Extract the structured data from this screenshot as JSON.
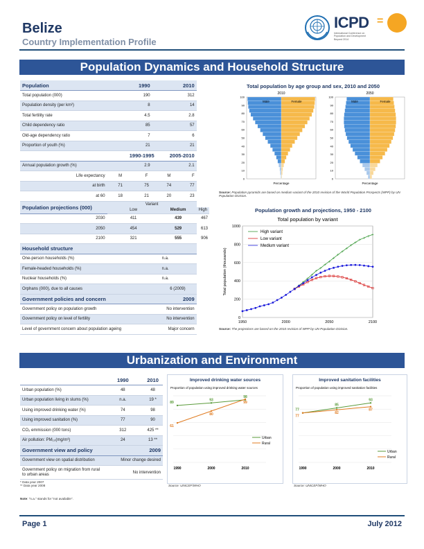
{
  "header": {
    "country": "Belize",
    "subtitle": "Country Implementation Profile",
    "logo_text": "ICPD",
    "logo_eq": "=",
    "logo_sub": "International Conference on Population and Development Beyond 2014"
  },
  "section1_title": "Population Dynamics and Household Structure",
  "section2_title": "Urbanization and Environment",
  "pop_table": {
    "header": {
      "label": "Population",
      "y1": "1990",
      "y2": "2010"
    },
    "rows": [
      {
        "label": "Total population (000)",
        "v1": "190",
        "v2": "312"
      },
      {
        "label": "Population density (per km²)",
        "v1": "8",
        "v2": "14"
      },
      {
        "label": "Total fertility rate",
        "v1": "4.5",
        "v2": "2.8"
      },
      {
        "label": "Child dependency ratio",
        "v1": "85",
        "v2": "57"
      },
      {
        "label": "Old-age dependency ratio",
        "v1": "7",
        "v2": "6"
      },
      {
        "label": "Proportion of youth (%)",
        "v1": "21",
        "v2": "21"
      }
    ],
    "period_header": {
      "p1": "1990-1995",
      "p2": "2005-2010"
    },
    "growth": {
      "label": "Annual population growth (%)",
      "v1": "2.9",
      "v2": "2.1"
    },
    "life_exp": {
      "label": "Life expectancy",
      "m": "M",
      "f": "F",
      "rows": [
        {
          "label": "at birth",
          "m1": "71",
          "f1": "75",
          "m2": "74",
          "f2": "77"
        },
        {
          "label": "at 60",
          "m1": "18",
          "f1": "21",
          "m2": "20",
          "f2": "23"
        }
      ]
    },
    "proj": {
      "label": "Population projections (000)",
      "variant": "Variant",
      "cols": [
        "Low",
        "Medium",
        "High"
      ],
      "rows": [
        {
          "year": "2030",
          "low": "411",
          "med": "439",
          "high": "467"
        },
        {
          "year": "2050",
          "low": "454",
          "med": "529",
          "high": "613"
        },
        {
          "year": "2100",
          "low": "321",
          "med": "555",
          "high": "906"
        }
      ]
    },
    "household": {
      "label": "Household structure",
      "rows": [
        {
          "label": "One-person households (%)",
          "v": "n.a."
        },
        {
          "label": "Female-headed households (%)",
          "v": "n.a."
        },
        {
          "label": "Nuclear households (%)",
          "v": "n.a."
        },
        {
          "label": "Orphans (000), due to all causes",
          "v": "6 (2009)"
        }
      ]
    },
    "policy": {
      "label": "Government policies and concern",
      "year": "2009",
      "rows": [
        {
          "label": "Government policy on population growth",
          "v": "No intervention"
        },
        {
          "label": "Government policy on level of fertility",
          "v": "No intervention"
        },
        {
          "label": "Level of government concern about population ageing",
          "v": "Major concern"
        }
      ]
    }
  },
  "pyramid": {
    "title": "Total population by age group and sex, 2010 and 2050",
    "years": [
      "2010",
      "2050"
    ],
    "male": "Male",
    "female": "Female",
    "age_ticks": [
      "100",
      "90",
      "80",
      "70",
      "60",
      "50",
      "40",
      "30",
      "20",
      "10",
      "0"
    ],
    "xlabel": "Percentage",
    "source_label": "Source:",
    "source": "Population pyramids are based on medium variant of the 2010 revision of the World Population Prospects (WPP) by UN Population Division.",
    "colors": {
      "male": "#4a90d9",
      "female": "#f6b94a",
      "male_light": "#a9c8eb",
      "female_light": "#f9d89a"
    }
  },
  "chart_data": [
    {
      "type": "line",
      "title": "Population growth and projections, 1950 - 2100",
      "subtitle": "Total population by variant",
      "ylabel": "Total population (thousands)",
      "xlim": [
        1950,
        2100
      ],
      "ylim": [
        0,
        1000
      ],
      "x_ticks": [
        1950,
        2000,
        2050,
        2100
      ],
      "y_ticks": [
        0,
        200,
        400,
        600,
        800,
        1000
      ],
      "legend": "top-left",
      "series": [
        {
          "name": "High variant",
          "color": "#3a9a3a",
          "x": [
            2010,
            2015,
            2020,
            2025,
            2030,
            2035,
            2040,
            2045,
            2050,
            2055,
            2060,
            2065,
            2070,
            2075,
            2080,
            2085,
            2090,
            2095,
            2100
          ],
          "values": [
            312,
            350,
            387,
            426,
            467,
            510,
            540,
            578,
            613,
            650,
            687,
            722,
            756,
            790,
            820,
            850,
            870,
            890,
            906
          ]
        },
        {
          "name": "Low variant",
          "color": "#d62020",
          "x": [
            2010,
            2015,
            2020,
            2025,
            2030,
            2035,
            2040,
            2045,
            2050,
            2055,
            2060,
            2065,
            2070,
            2075,
            2080,
            2085,
            2090,
            2095,
            2100
          ],
          "values": [
            312,
            338,
            362,
            388,
            411,
            430,
            442,
            450,
            454,
            453,
            448,
            440,
            428,
            412,
            395,
            375,
            355,
            338,
            321
          ]
        },
        {
          "name": "Medium variant",
          "color": "#1a1adb",
          "x": [
            1950,
            1955,
            1960,
            1965,
            1970,
            1975,
            1980,
            1985,
            1990,
            1995,
            2000,
            2005,
            2010,
            2015,
            2020,
            2025,
            2030,
            2035,
            2040,
            2045,
            2050,
            2055,
            2060,
            2065,
            2070,
            2075,
            2080,
            2085,
            2090,
            2095,
            2100
          ],
          "values": [
            69,
            80,
            92,
            104,
            122,
            133,
            145,
            163,
            190,
            217,
            247,
            280,
            312,
            345,
            375,
            407,
            439,
            465,
            490,
            510,
            529,
            543,
            555,
            564,
            570,
            574,
            575,
            573,
            567,
            561,
            555
          ]
        }
      ],
      "source_label": "Source:",
      "source": "The projections are based on the 2010 revision of WPP by UN Population Division."
    },
    {
      "type": "line",
      "title": "Improved drinking water sources",
      "subtitle": "Proportion of population using improved drinking water sources",
      "x_ticks": [
        "1990",
        "2000",
        "2010"
      ],
      "ylim": [
        0,
        100
      ],
      "legend": "right",
      "series": [
        {
          "name": "Urban",
          "color": "#5a9a3a",
          "x": [
            1990,
            2000,
            2010
          ],
          "values": [
            89,
            93,
            98
          ]
        },
        {
          "name": "Rural",
          "color": "#e07b20",
          "x": [
            1990,
            2000,
            2010
          ],
          "values": [
            61,
            80,
            99
          ]
        }
      ],
      "source": "Source: UNICEF/WHO"
    },
    {
      "type": "line",
      "title": "Improved sanitation facilities",
      "subtitle": "Proportion of population using improved sanitation facilities",
      "x_ticks": [
        "1990",
        "2000",
        "2010"
      ],
      "ylim": [
        0,
        100
      ],
      "legend": "bottom-right",
      "series": [
        {
          "name": "Urban",
          "color": "#5a9a3a",
          "x": [
            1990,
            2000,
            2010
          ],
          "values": [
            77,
            85,
            93
          ]
        },
        {
          "name": "Rural",
          "color": "#e07b20",
          "x": [
            1990,
            2000,
            2010
          ],
          "values": [
            77,
            82,
            87
          ]
        }
      ],
      "source": "Source: UNICEF/WHO"
    }
  ],
  "urban_table": {
    "header": {
      "label": "",
      "y1": "1990",
      "y2": "2010"
    },
    "rows": [
      {
        "label": "Urban population (%)",
        "v1": "48",
        "v2": "48"
      },
      {
        "label": "Urban population living in slums (%)",
        "v1": "n.a.",
        "v2": "19 *"
      },
      {
        "label": "Using improved drinking water (%)",
        "v1": "74",
        "v2": "98"
      },
      {
        "label": "Using improved sanitation (%)",
        "v1": "77",
        "v2": "90"
      },
      {
        "label": "CO₂ emmission (000 tons)",
        "v1": "312",
        "v2": "425 **"
      },
      {
        "label": "Air pollution: PM₁₀(mg/m³)",
        "v1": "24",
        "v2": "13 **"
      }
    ],
    "view": {
      "label": "Government view and policy",
      "year": "2009",
      "rows": [
        {
          "label": "Government view on spatial distribution",
          "v": "Minor change desired"
        },
        {
          "label": "Government policy on migration from rural to urban areas",
          "v": "No intervention"
        }
      ]
    },
    "footnotes": [
      "* Data year 2007",
      "** Data year 2008"
    ],
    "note_label": "Note",
    "note": ": \"n.a.\" stands for \"not available\"."
  },
  "footer": {
    "page": "Page 1",
    "date": "July 2012"
  }
}
